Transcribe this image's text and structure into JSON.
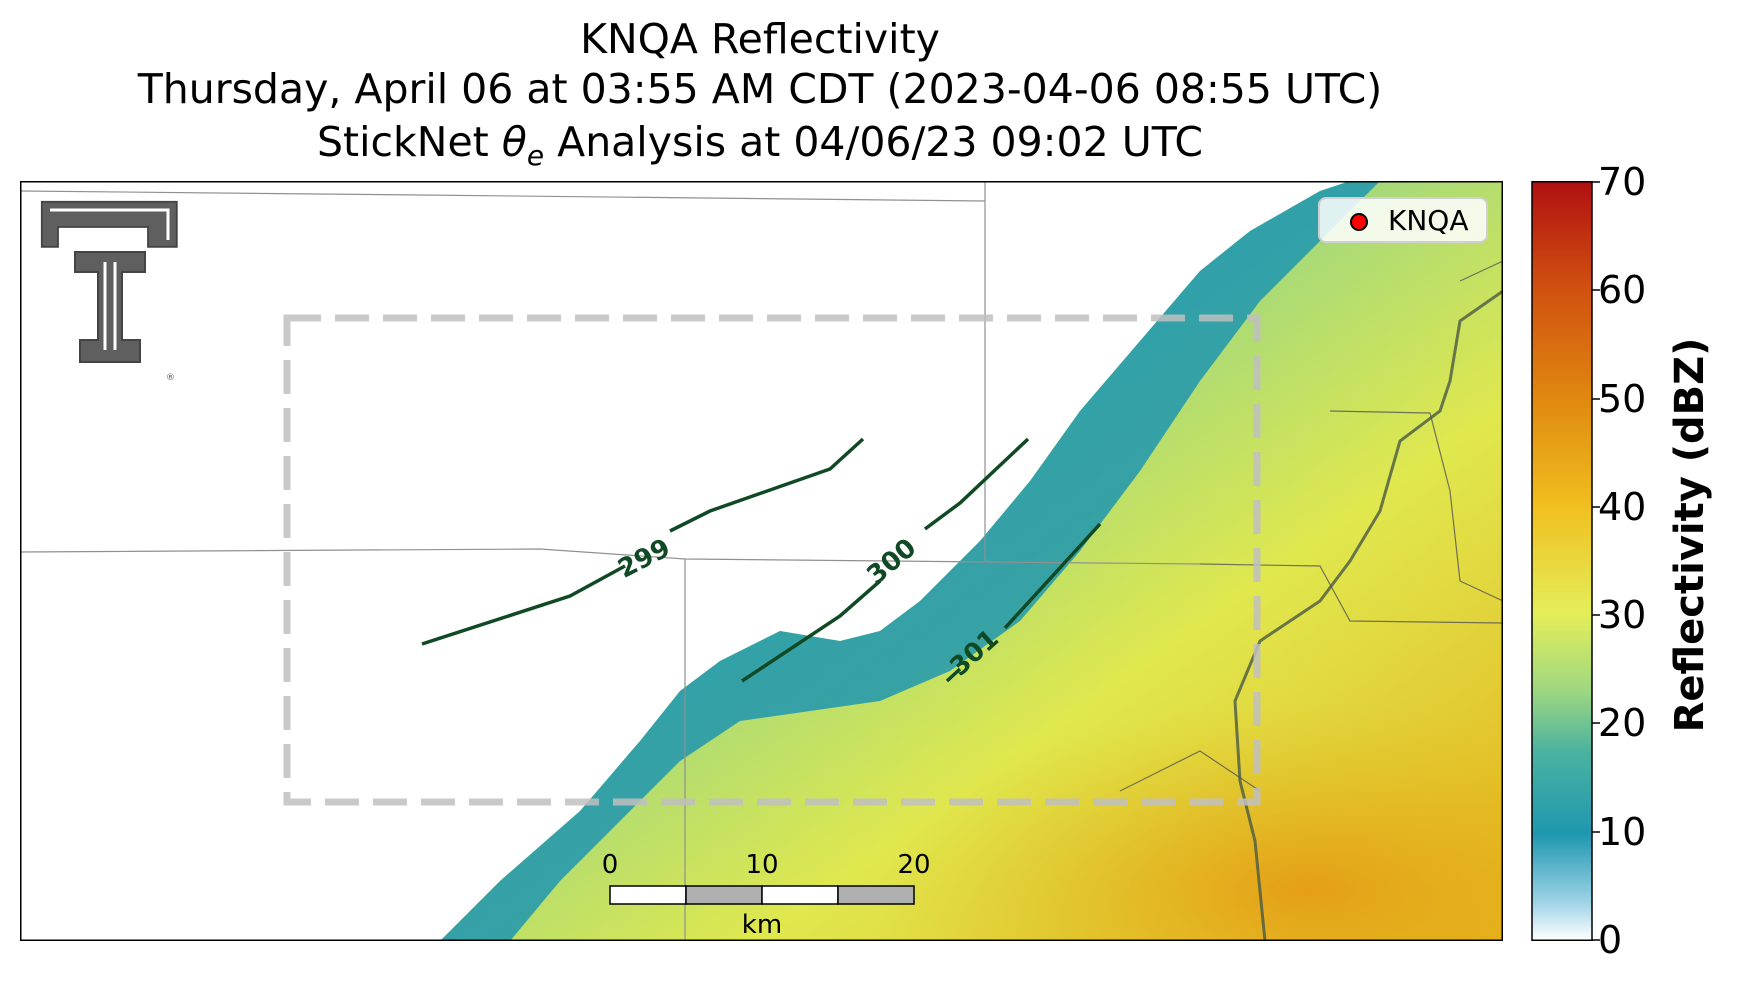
{
  "title": {
    "line1": "KNQA Reflectivity",
    "line2": "Thursday, April 06 at 03:55 AM CDT (2023-04-06 08:55 UTC)",
    "line3_prefix": "StickNet ",
    "line3_symbol": "θ",
    "line3_subscript": "e",
    "line3_suffix": " Analysis at 04/06/23 09:02 UTC"
  },
  "legend": {
    "label": "KNQA",
    "marker_color": "#ff0000"
  },
  "colorbar": {
    "label": "Reflectivity (dBZ)",
    "range": [
      0,
      70
    ],
    "ticks": [
      "0",
      "10",
      "20",
      "30",
      "40",
      "50",
      "60",
      "70"
    ],
    "colors": [
      "#ffffff",
      "#6fc0dc",
      "#1f97b0",
      "#4cb3a0",
      "#9fd880",
      "#e4ee5a",
      "#f0c020",
      "#e08a10",
      "#d05010",
      "#b01010"
    ]
  },
  "contours": [
    {
      "label": "299"
    },
    {
      "label": "300"
    },
    {
      "label": "301"
    }
  ],
  "contour_color": "#0f4a25",
  "scale_bar": {
    "ticks": [
      "0",
      "10",
      "20"
    ],
    "unit": "km"
  },
  "logo": {
    "name": "texas-tech-double-t-logo"
  }
}
